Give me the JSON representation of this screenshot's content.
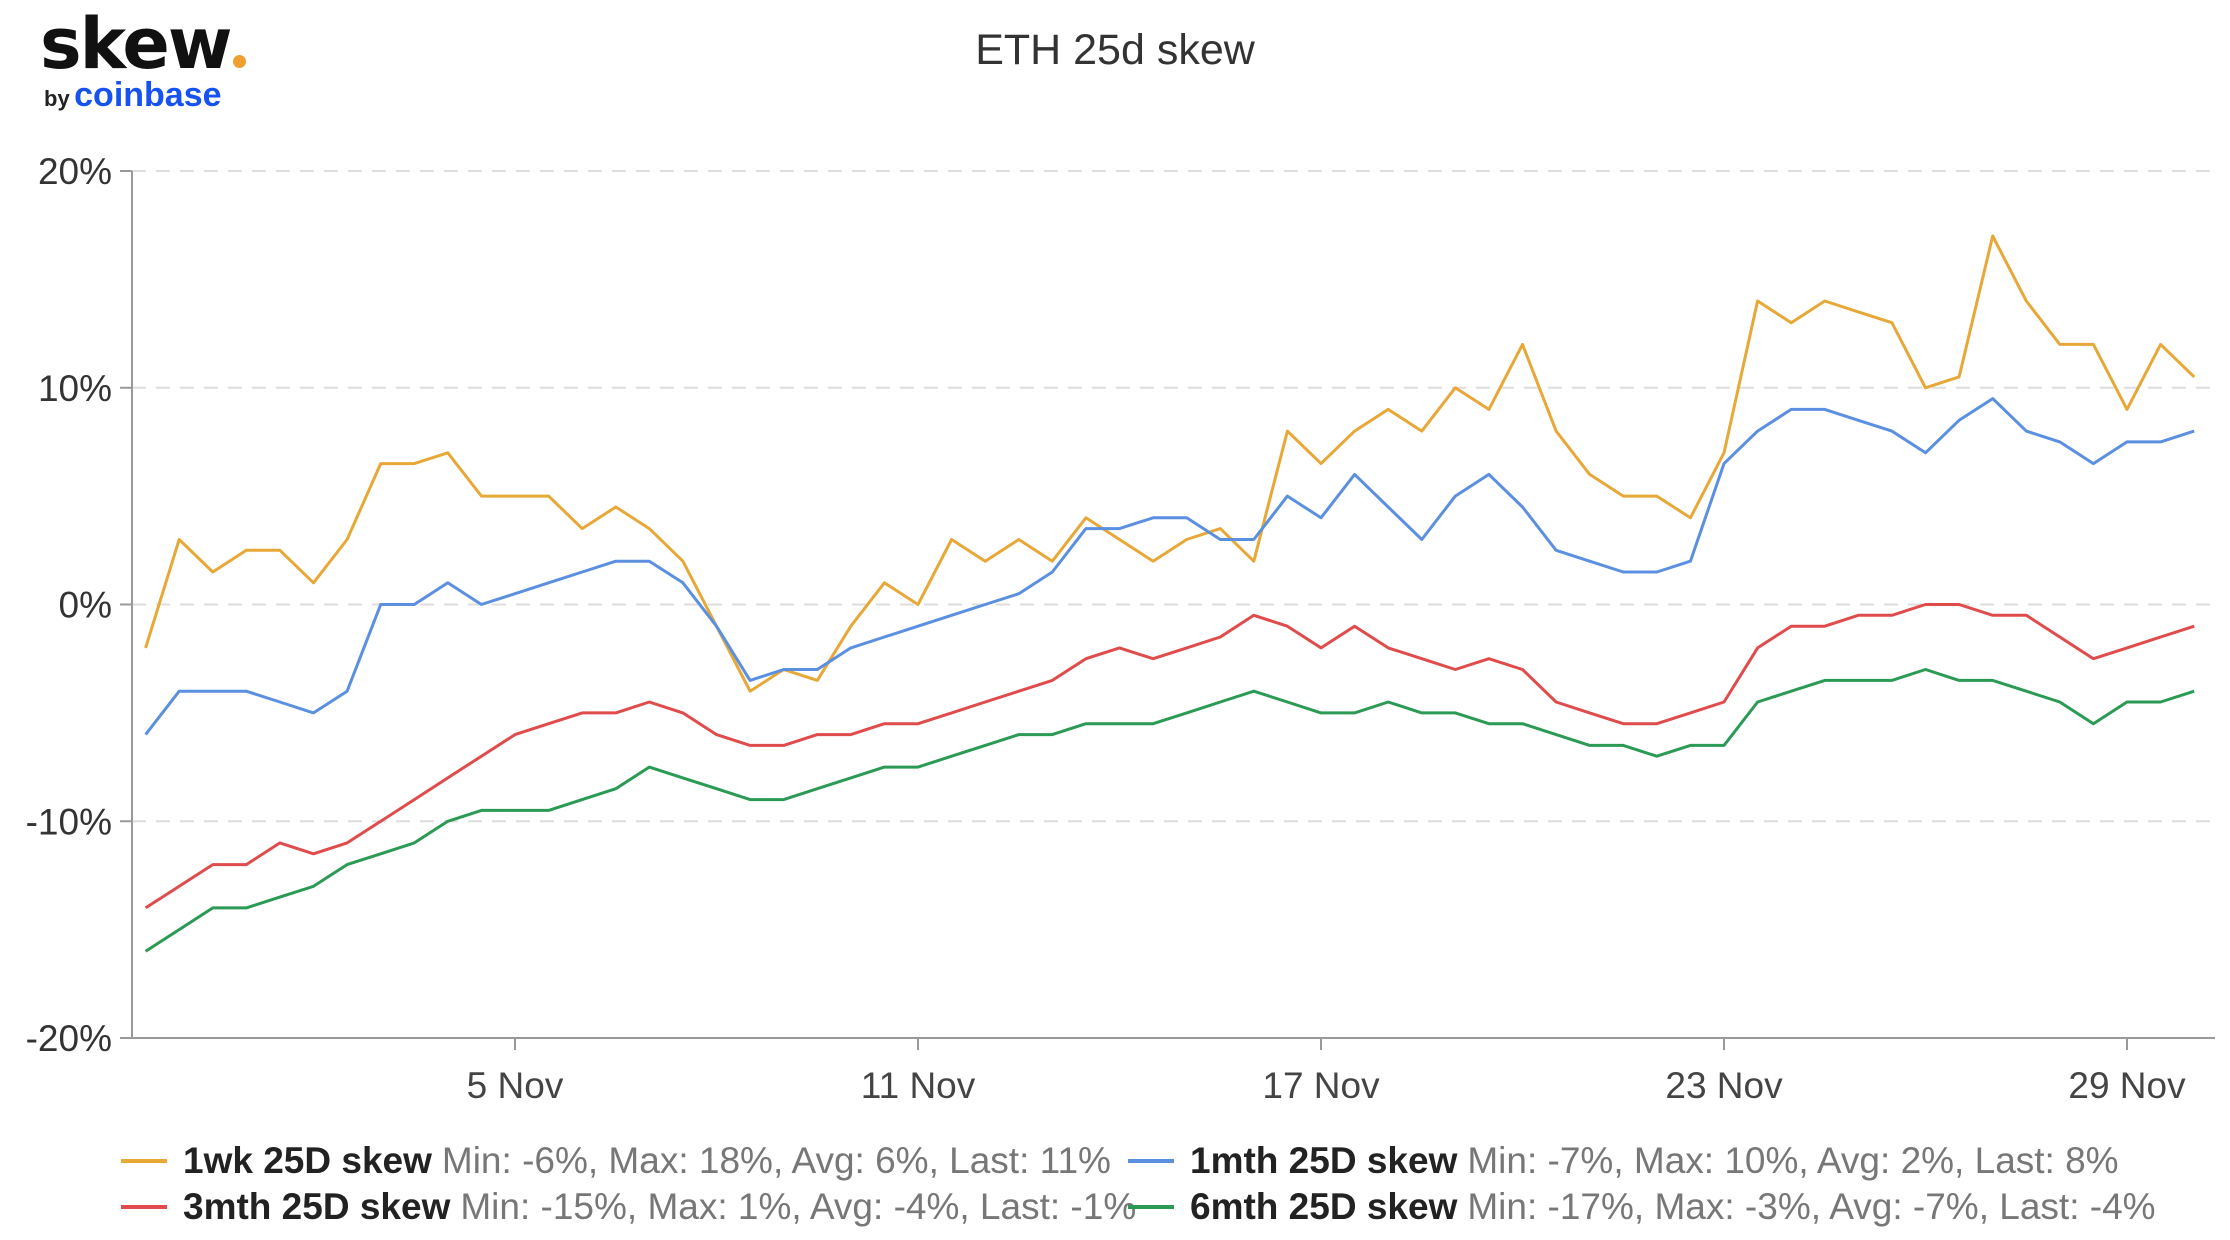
{
  "logo": {
    "brand": "skew",
    "by": "by",
    "parent": "coinbase"
  },
  "chart_data": {
    "type": "line",
    "title": "ETH 25d skew",
    "xlabel": "",
    "ylabel": "",
    "ylim": [
      -20,
      20
    ],
    "yticks": [
      "20%",
      "10%",
      "0%",
      "-10%",
      "-20%"
    ],
    "ytick_values": [
      20,
      10,
      0,
      -10,
      -20
    ],
    "xticks": [
      "5 Nov",
      "11 Nov",
      "17 Nov",
      "23 Nov",
      "29 Nov"
    ],
    "xtick_dates": [
      "11-05 00:00",
      "11-11 00:00",
      "11-17 00:00",
      "11-23 00:00",
      "11-29 00:00"
    ],
    "xlim": [
      "10-30 07:40",
      "11-30 07:00"
    ],
    "grid": "horizontal dashed",
    "legend_placement": "bottom",
    "x": [
      "10-30 12:00",
      "10-31 00:00",
      "10-31 12:00",
      "11-01 00:00",
      "11-01 12:00",
      "11-02 00:00",
      "11-02 12:00",
      "11-03 00:00",
      "11-03 12:00",
      "11-04 00:00",
      "11-04 12:00",
      "11-05 00:00",
      "11-05 12:00",
      "11-06 00:00",
      "11-06 12:00",
      "11-07 00:00",
      "11-07 12:00",
      "11-08 00:00",
      "11-08 12:00",
      "11-09 00:00",
      "11-09 12:00",
      "11-10 00:00",
      "11-10 12:00",
      "11-11 00:00",
      "11-11 12:00",
      "11-12 00:00",
      "11-12 12:00",
      "11-13 00:00",
      "11-13 12:00",
      "11-14 00:00",
      "11-14 12:00",
      "11-15 00:00",
      "11-15 12:00",
      "11-16 00:00",
      "11-16 12:00",
      "11-17 00:00",
      "11-17 12:00",
      "11-18 00:00",
      "11-18 12:00",
      "11-19 00:00",
      "11-19 12:00",
      "11-20 00:00",
      "11-20 12:00",
      "11-21 00:00",
      "11-21 12:00",
      "11-22 00:00",
      "11-22 12:00",
      "11-23 00:00",
      "11-23 12:00",
      "11-24 00:00",
      "11-24 12:00",
      "11-25 00:00",
      "11-25 12:00",
      "11-26 00:00",
      "11-26 12:00",
      "11-27 00:00",
      "11-27 12:00",
      "11-28 00:00",
      "11-28 12:00",
      "11-29 00:00",
      "11-29 12:00",
      "11-30 00:00"
    ],
    "series": [
      {
        "name": "1wk 25D skew",
        "color": "#E8A838",
        "stats": "Min: -6%, Max: 18%, Avg: 6%, Last: 11%",
        "values": [
          -2,
          3,
          1.5,
          2.5,
          2.5,
          1,
          3,
          6.5,
          6.5,
          7,
          5,
          5,
          5,
          3.5,
          4.5,
          3.5,
          2,
          -1,
          -4,
          -3,
          -3.5,
          -1,
          1,
          0,
          3,
          2,
          3,
          2,
          4,
          3,
          2,
          3,
          3.5,
          2,
          8,
          6.5,
          8,
          9,
          8,
          10,
          9,
          12,
          8,
          6,
          5,
          5,
          4,
          7,
          14,
          13,
          14,
          13.5,
          13,
          10,
          10.5,
          17,
          14,
          12,
          12,
          9,
          12,
          10.5
        ]
      },
      {
        "name": "1mth 25D skew",
        "color": "#5B8FE0",
        "stats": "Min: -7%, Max: 10%, Avg: 2%, Last: 8%",
        "values": [
          -6,
          -4,
          -4,
          -4,
          -4.5,
          -5,
          -4,
          0,
          0,
          1,
          0,
          0.5,
          1,
          1.5,
          2,
          2,
          1,
          -1,
          -3.5,
          -3,
          -3,
          -2,
          -1.5,
          -1,
          -0.5,
          0,
          0.5,
          1.5,
          3.5,
          3.5,
          4,
          4,
          3,
          3,
          5,
          4,
          6,
          4.5,
          3,
          5,
          6,
          4.5,
          2.5,
          2,
          1.5,
          1.5,
          2,
          6.5,
          8,
          9,
          9,
          8.5,
          8,
          7,
          8.5,
          9.5,
          8,
          7.5,
          6.5,
          7.5,
          7.5,
          8
        ]
      },
      {
        "name": "3mth 25D skew",
        "color": "#E04B4B",
        "stats": "Min: -15%, Max: 1%, Avg: -4%, Last: -1%",
        "values": [
          -14,
          -13,
          -12,
          -12,
          -11,
          -11.5,
          -11,
          -10,
          -9,
          -8,
          -7,
          -6,
          -5.5,
          -5,
          -5,
          -4.5,
          -5,
          -6,
          -6.5,
          -6.5,
          -6,
          -6,
          -5.5,
          -5.5,
          -5,
          -4.5,
          -4,
          -3.5,
          -2.5,
          -2,
          -2.5,
          -2,
          -1.5,
          -0.5,
          -1,
          -2,
          -1,
          -2,
          -2.5,
          -3,
          -2.5,
          -3,
          -4.5,
          -5,
          -5.5,
          -5.5,
          -5,
          -4.5,
          -2,
          -1,
          -1,
          -0.5,
          -0.5,
          0,
          0,
          -0.5,
          -0.5,
          -1.5,
          -2.5,
          -2,
          -1.5,
          -1
        ]
      },
      {
        "name": "6mth 25D skew",
        "color": "#2A9A55",
        "stats": "Min: -17%, Max: -3%, Avg: -7%, Last: -4%",
        "values": [
          -16,
          -15,
          -14,
          -14,
          -13.5,
          -13,
          -12,
          -11.5,
          -11,
          -10,
          -9.5,
          -9.5,
          -9.5,
          -9,
          -8.5,
          -7.5,
          -8,
          -8.5,
          -9,
          -9,
          -8.5,
          -8,
          -7.5,
          -7.5,
          -7,
          -6.5,
          -6,
          -6,
          -5.5,
          -5.5,
          -5.5,
          -5,
          -4.5,
          -4,
          -4.5,
          -5,
          -5,
          -4.5,
          -5,
          -5,
          -5.5,
          -5.5,
          -6,
          -6.5,
          -6.5,
          -7,
          -6.5,
          -6.5,
          -4.5,
          -4,
          -3.5,
          -3.5,
          -3.5,
          -3,
          -3.5,
          -3.5,
          -4,
          -4.5,
          -5.5,
          -4.5,
          -4.5,
          -4
        ]
      }
    ]
  }
}
